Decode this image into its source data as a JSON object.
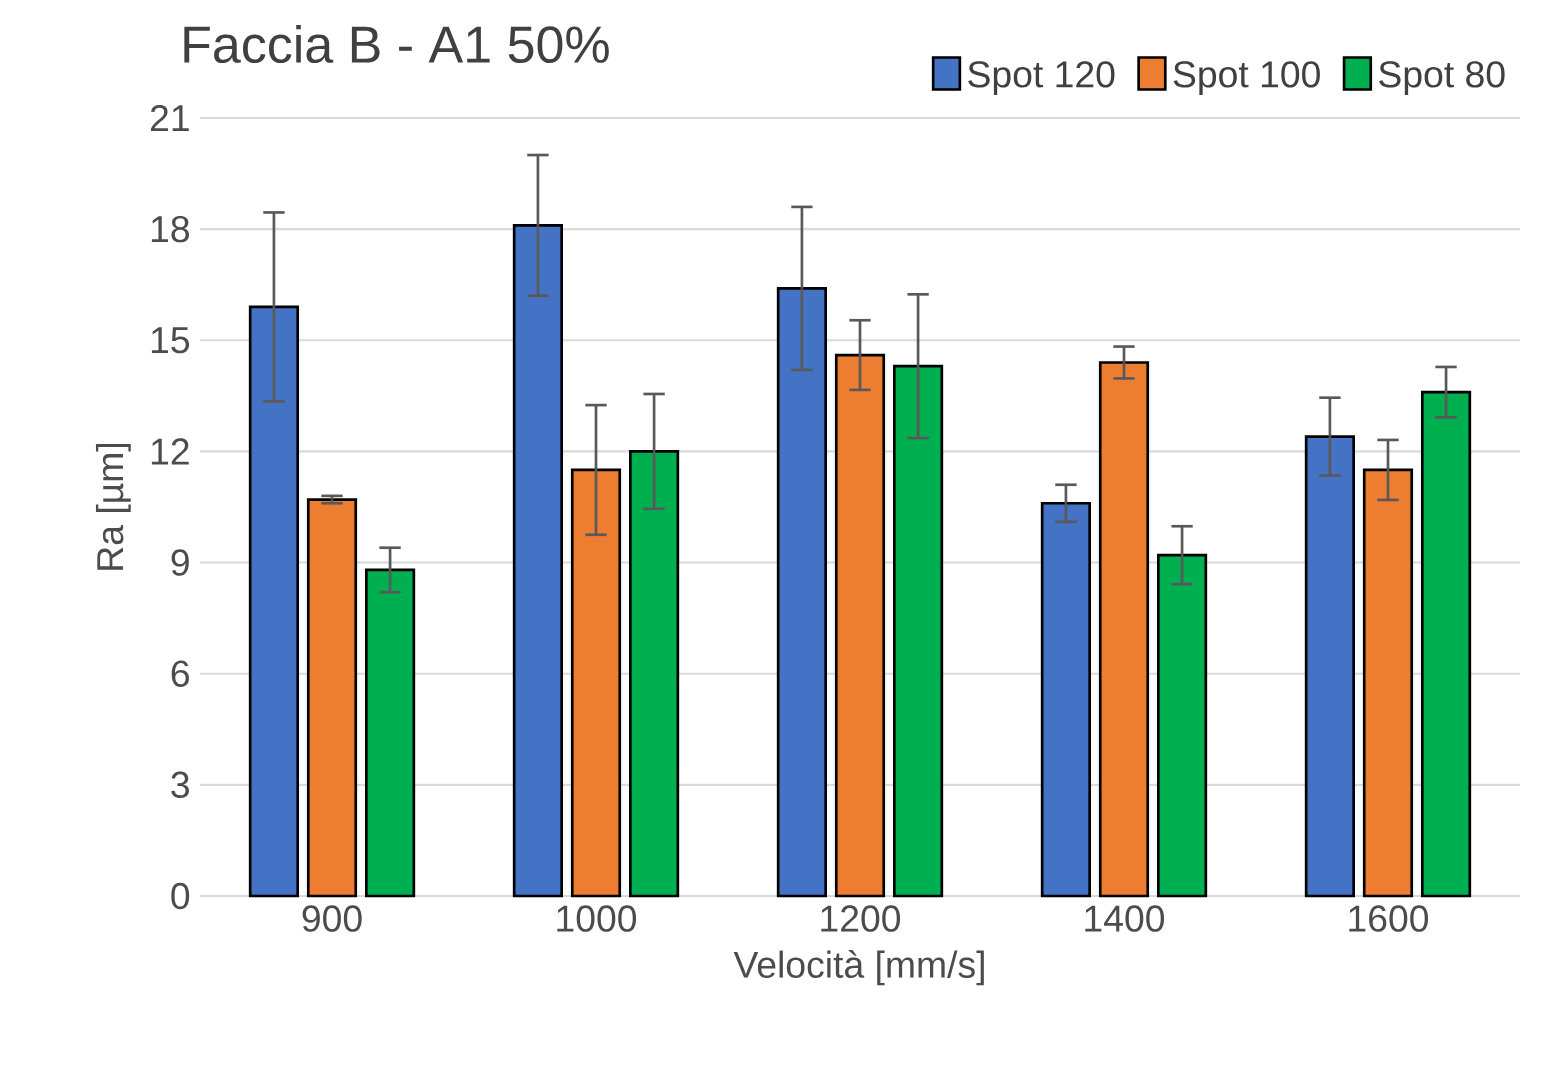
{
  "chart_data": {
    "type": "bar",
    "title": "Faccia B - A1 50%",
    "xlabel": "Velocità [mm/s]",
    "ylabel": "Ra [µm]",
    "categories": [
      "900",
      "1000",
      "1200",
      "1400",
      "1600"
    ],
    "series": [
      {
        "name": "Spot 120",
        "color": "#4472c4",
        "values": [
          15.9,
          18.1,
          16.4,
          10.6,
          12.4
        ],
        "errors": [
          2.55,
          1.9,
          2.2,
          0.5,
          1.05
        ]
      },
      {
        "name": "Spot 100",
        "color": "#ed7d31",
        "values": [
          10.7,
          11.5,
          14.6,
          14.4,
          11.5
        ],
        "errors": [
          0.1,
          1.75,
          0.94,
          0.43,
          0.81
        ]
      },
      {
        "name": "Spot 80",
        "color": "#00b050",
        "values": [
          8.8,
          12.0,
          14.3,
          9.2,
          13.6
        ],
        "errors": [
          0.6,
          1.55,
          1.94,
          0.78,
          0.68
        ]
      }
    ],
    "ylim": [
      0,
      21
    ],
    "yticks": [
      0,
      3,
      6,
      9,
      12,
      15,
      18,
      21
    ],
    "grid": "y",
    "legend": "top right"
  }
}
